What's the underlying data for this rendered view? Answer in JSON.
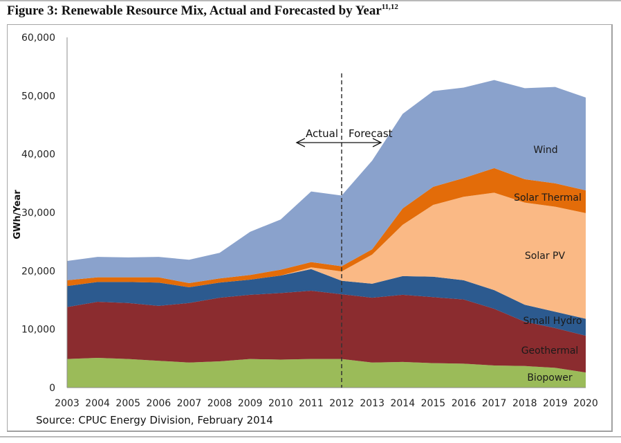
{
  "figure": {
    "title": "Figure 3: Renewable Resource Mix, Actual and Forecasted by Year",
    "title_superscript": "11,12",
    "source": "Source: CPUC Energy Division, February 2014"
  },
  "chart_data": {
    "type": "area",
    "stacked": true,
    "title": "Figure 3: Renewable Resource Mix, Actual and Forecasted by Year",
    "xlabel": "",
    "ylabel": "GWh/Year",
    "ylim": [
      0,
      60000
    ],
    "yticks": [
      0,
      10000,
      20000,
      30000,
      40000,
      50000,
      60000
    ],
    "ytick_labels": [
      "0",
      "10,000",
      "20,000",
      "30,000",
      "40,000",
      "50,000",
      "60,000"
    ],
    "x": [
      "2003",
      "2004",
      "2005",
      "2006",
      "2007",
      "2008",
      "2009",
      "2010",
      "2011",
      "2012",
      "2013",
      "2014",
      "2015",
      "2016",
      "2017",
      "2018",
      "2019",
      "2020"
    ],
    "grid": false,
    "legend": "inline labels on right side of areas",
    "series": [
      {
        "name": "Biopower",
        "color": "#9bbb59",
        "values": [
          4900,
          5100,
          4900,
          4600,
          4300,
          4500,
          4900,
          4800,
          4900,
          4900,
          4300,
          4400,
          4200,
          4100,
          3800,
          3700,
          3400,
          2600
        ]
      },
      {
        "name": "Geothermal",
        "color": "#8b2c2f",
        "values": [
          8900,
          9600,
          9600,
          9400,
          10200,
          10900,
          11000,
          11400,
          11700,
          11100,
          11100,
          11500,
          11300,
          11000,
          9700,
          7600,
          6800,
          6300
        ]
      },
      {
        "name": "Small Hydro",
        "color": "#2c5a8f",
        "values": [
          3600,
          3400,
          3600,
          4000,
          2700,
          2600,
          2600,
          3000,
          3700,
          2300,
          2400,
          3200,
          3500,
          3300,
          3200,
          2900,
          2800,
          2900
        ]
      },
      {
        "name": "Solar PV",
        "color": "#fab985",
        "values": [
          0,
          0,
          0,
          0,
          0,
          0,
          0,
          0,
          300,
          1600,
          5000,
          8800,
          12300,
          14300,
          16700,
          17500,
          18000,
          18100
        ]
      },
      {
        "name": "Solar Thermal",
        "color": "#e36c09",
        "values": [
          1000,
          800,
          800,
          900,
          700,
          700,
          800,
          1000,
          900,
          900,
          900,
          2800,
          3100,
          3200,
          4200,
          4000,
          4000,
          3900
        ]
      },
      {
        "name": "Wind",
        "color": "#8aa2cc",
        "values": [
          3300,
          3500,
          3400,
          3500,
          4000,
          4400,
          7400,
          8600,
          12100,
          12100,
          15200,
          16200,
          16400,
          15500,
          15100,
          15600,
          16500,
          15900
        ]
      }
    ],
    "annotations": [
      {
        "type": "vertical-dashed-line",
        "x": "2012",
        "label": ""
      },
      {
        "type": "text",
        "text": "Actual",
        "x_anchor": "left of 2012"
      },
      {
        "type": "text",
        "text": "Forecast",
        "x_anchor": "right of 2012"
      },
      {
        "type": "double-arrow",
        "from": "2011",
        "to": "2013.3"
      }
    ]
  }
}
